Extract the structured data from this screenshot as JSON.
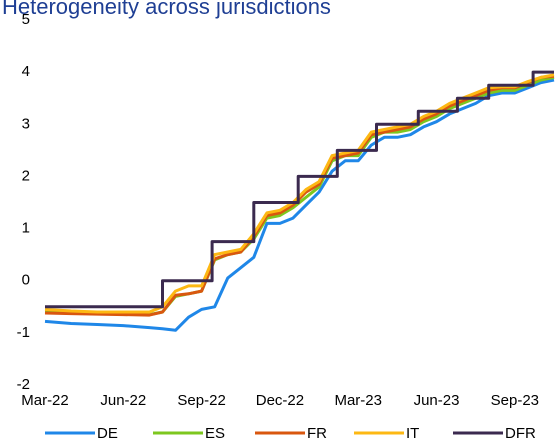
{
  "chart_data": {
    "type": "line",
    "title": "Heterogeneity across jurisdictions",
    "x": [
      0,
      1,
      2,
      3,
      4,
      4.5,
      5,
      5.5,
      6,
      6.5,
      7,
      7.5,
      8,
      8.5,
      9,
      9.5,
      10,
      10.5,
      11,
      11.5,
      12,
      12.5,
      13,
      13.5,
      14,
      14.5,
      15,
      15.5,
      16,
      16.5,
      17,
      17.5,
      18,
      18.5,
      19,
      19.5
    ],
    "xlim": [
      0,
      19.5
    ],
    "xticks": [
      {
        "value": 0,
        "label": "Mar-22"
      },
      {
        "value": 3,
        "label": "Jun-22"
      },
      {
        "value": 6,
        "label": "Sep-22"
      },
      {
        "value": 9,
        "label": "Dec-22"
      },
      {
        "value": 12,
        "label": "Mar-23"
      },
      {
        "value": 15,
        "label": "Jun-23"
      },
      {
        "value": 18,
        "label": "Sep-23"
      }
    ],
    "ylim": [
      -2,
      5
    ],
    "yticks": [
      -2,
      -1,
      0,
      1,
      2,
      3,
      4,
      5
    ],
    "grid": false,
    "series": [
      {
        "name": "DE",
        "color": "#1f87e8",
        "values": [
          -0.78,
          -0.82,
          -0.84,
          -0.86,
          -0.9,
          -0.92,
          -0.95,
          -0.7,
          -0.55,
          -0.5,
          0.05,
          0.25,
          0.45,
          1.1,
          1.1,
          1.2,
          1.45,
          1.7,
          2.1,
          2.3,
          2.3,
          2.6,
          2.75,
          2.75,
          2.8,
          2.95,
          3.05,
          3.2,
          3.3,
          3.4,
          3.55,
          3.6,
          3.6,
          3.7,
          3.8,
          3.85
        ]
      },
      {
        "name": "ES",
        "color": "#7dc71f",
        "values": [
          -0.6,
          -0.62,
          -0.63,
          -0.64,
          -0.65,
          -0.6,
          -0.3,
          -0.25,
          -0.2,
          0.4,
          0.5,
          0.55,
          0.8,
          1.2,
          1.25,
          1.4,
          1.6,
          1.8,
          2.3,
          2.4,
          2.4,
          2.75,
          2.85,
          2.85,
          2.9,
          3.05,
          3.15,
          3.3,
          3.4,
          3.5,
          3.6,
          3.65,
          3.65,
          3.75,
          3.85,
          3.9
        ]
      },
      {
        "name": "FR",
        "color": "#d9570f",
        "values": [
          -0.62,
          -0.63,
          -0.64,
          -0.65,
          -0.66,
          -0.6,
          -0.28,
          -0.25,
          -0.2,
          0.42,
          0.5,
          0.55,
          0.85,
          1.25,
          1.3,
          1.45,
          1.7,
          1.85,
          2.35,
          2.4,
          2.45,
          2.8,
          2.85,
          2.9,
          2.95,
          3.1,
          3.2,
          3.35,
          3.45,
          3.55,
          3.65,
          3.7,
          3.7,
          3.8,
          3.9,
          3.92
        ]
      },
      {
        "name": "IT",
        "color": "#fdb813",
        "values": [
          -0.55,
          -0.58,
          -0.6,
          -0.6,
          -0.6,
          -0.5,
          -0.2,
          -0.1,
          -0.1,
          0.5,
          0.55,
          0.6,
          0.9,
          1.3,
          1.35,
          1.5,
          1.75,
          1.9,
          2.4,
          2.45,
          2.5,
          2.85,
          2.9,
          2.95,
          3.0,
          3.15,
          3.25,
          3.4,
          3.5,
          3.6,
          3.7,
          3.72,
          3.72,
          3.82,
          3.9,
          3.95
        ]
      },
      {
        "name": "DFR",
        "color": "#3b2a4f",
        "x": [
          0,
          4.5,
          4.5,
          6.4,
          6.4,
          8,
          8,
          9.7,
          9.7,
          11.2,
          11.2,
          12.7,
          12.7,
          14.3,
          14.3,
          15.8,
          15.8,
          17,
          17,
          18.7,
          18.7,
          19.5
        ],
        "values": [
          -0.5,
          -0.5,
          0,
          0,
          0.75,
          0.75,
          1.5,
          1.5,
          2,
          2,
          2.5,
          2.5,
          3,
          3,
          3.25,
          3.25,
          3.5,
          3.5,
          3.75,
          3.75,
          4,
          4
        ]
      }
    ]
  }
}
